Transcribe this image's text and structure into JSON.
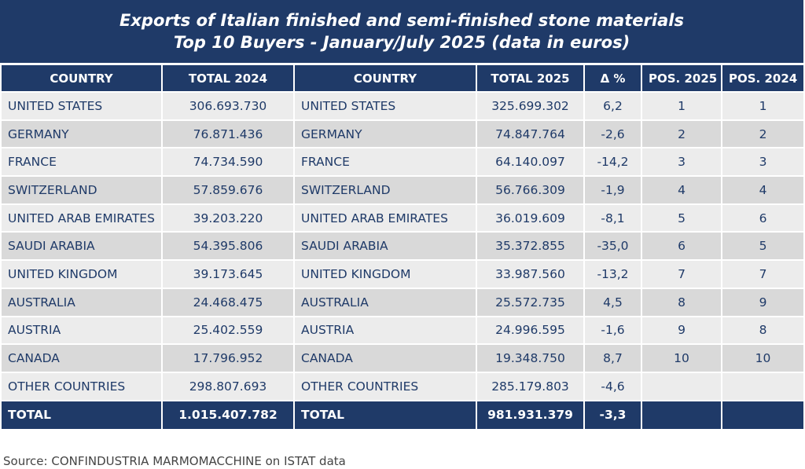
{
  "header": {
    "title": [
      "Exports of Italian finished and semi-finished stone materials",
      "Top 10 Buyers - January/July 2025 (data in euros)"
    ]
  },
  "table": {
    "columns": [
      "COUNTRY",
      "TOTAL 2024",
      "COUNTRY",
      "TOTAL 2025",
      "Δ %",
      "POS. 2025",
      "POS. 2024"
    ],
    "rows": [
      [
        "UNITED STATES",
        "306.693.730",
        "UNITED STATES",
        "325.699.302",
        "6,2",
        "1",
        "1"
      ],
      [
        "GERMANY",
        "76.871.436",
        "GERMANY",
        "74.847.764",
        "-2,6",
        "2",
        "2"
      ],
      [
        "FRANCE",
        "74.734.590",
        "FRANCE",
        "64.140.097",
        "-14,2",
        "3",
        "3"
      ],
      [
        "SWITZERLAND",
        "57.859.676",
        "SWITZERLAND",
        "56.766.309",
        "-1,9",
        "4",
        "4"
      ],
      [
        "UNITED ARAB EMIRATES",
        "39.203.220",
        "UNITED ARAB EMIRATES",
        "36.019.609",
        "-8,1",
        "5",
        "6"
      ],
      [
        "SAUDI ARABIA",
        "54.395.806",
        "SAUDI ARABIA",
        "35.372.855",
        "-35,0",
        "6",
        "5"
      ],
      [
        "UNITED KINGDOM",
        "39.173.645",
        "UNITED KINGDOM",
        "33.987.560",
        "-13,2",
        "7",
        "7"
      ],
      [
        "AUSTRALIA",
        "24.468.475",
        "AUSTRALIA",
        "25.572.735",
        "4,5",
        "8",
        "9"
      ],
      [
        "AUSTRIA",
        "25.402.559",
        "AUSTRIA",
        "24.996.595",
        "-1,6",
        "9",
        "8"
      ],
      [
        "CANADA",
        "17.796.952",
        "CANADA",
        "19.348.750",
        "8,7",
        "10",
        "10"
      ],
      [
        "OTHER COUNTRIES",
        "298.807.693",
        "OTHER COUNTRIES",
        "285.179.803",
        "-4,6"
      ]
    ],
    "total": [
      "TOTAL",
      "1.015.407.782",
      "TOTAL",
      "981.931.379",
      "-3,3"
    ]
  },
  "footer": {
    "source": "Source: CONFINDUSTRIA MARMOMACCHINE on ISTAT data"
  }
}
